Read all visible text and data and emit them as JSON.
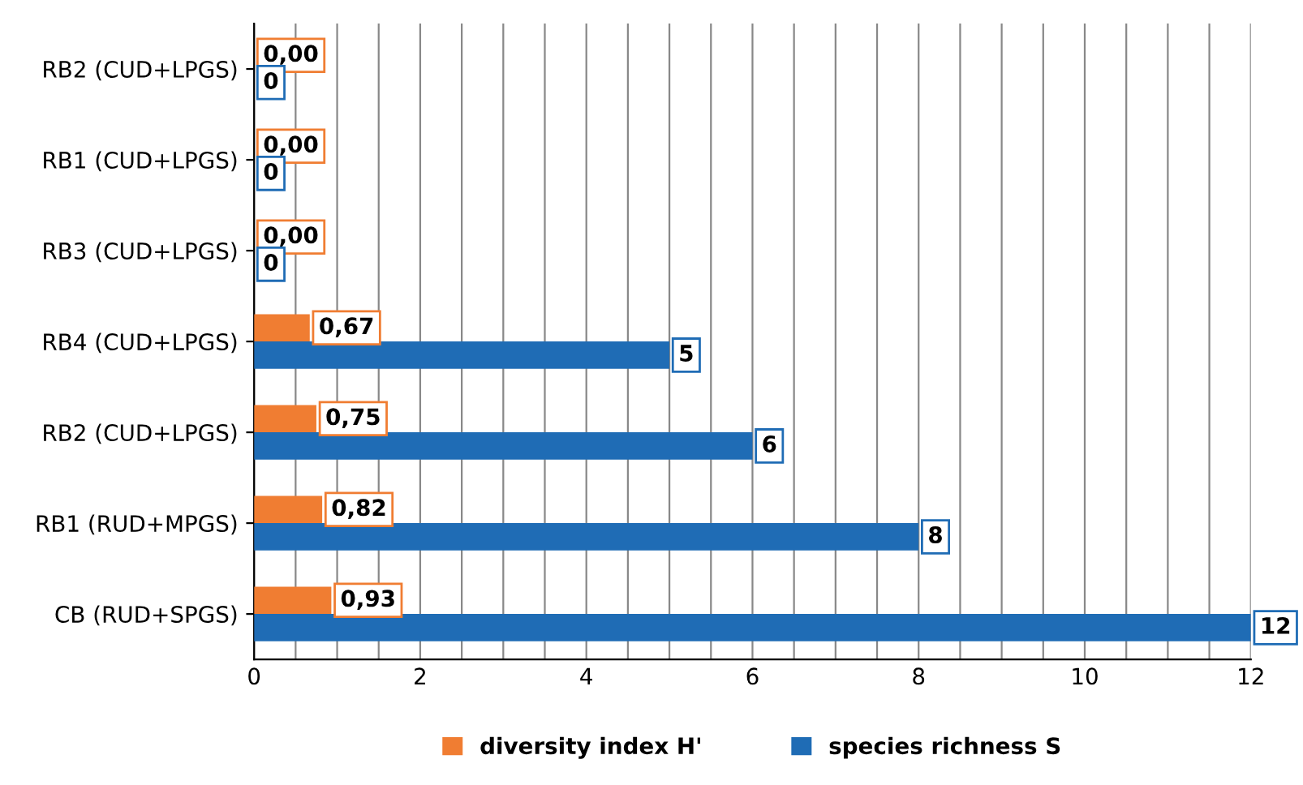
{
  "chart_data": {
    "type": "bar",
    "orientation": "horizontal",
    "categories": [
      "RB2 (CUD+LPGS)",
      "RB1 (CUD+LPGS)",
      "RB3 (CUD+LPGS)",
      "RB4 (CUD+LPGS)",
      "RB2 (CUD+LPGS)",
      "RB1 (RUD+MPGS)",
      "CB (RUD+SPGS)"
    ],
    "series": [
      {
        "name": "diversity index H'",
        "color": "#f07d32",
        "values": [
          0,
          0,
          0,
          0.67,
          0.75,
          0.82,
          0.93
        ],
        "value_labels": [
          "0,00",
          "0,00",
          "0,00",
          "0,67",
          "0,75",
          "0,82",
          "0,93"
        ]
      },
      {
        "name": "species richness S",
        "color": "#1f6cb5",
        "values": [
          0,
          0,
          0,
          5,
          6,
          8,
          12
        ],
        "value_labels": [
          "0",
          "0",
          "0",
          "5",
          "6",
          "8",
          "12"
        ]
      }
    ],
    "xlim": [
      0,
      12
    ],
    "xticks": [
      0,
      {
        "value": 0.5,
        "label": null
      },
      2,
      {
        "value": 2.5,
        "label": null
      },
      4,
      {
        "value": 4.5,
        "label": null
      },
      6,
      {
        "value": 6.5,
        "label": null
      },
      8,
      {
        "value": 8.5,
        "label": null
      },
      10,
      {
        "value": 10.5,
        "label": null
      },
      12,
      {
        "value": 1,
        "label": null
      },
      {
        "value": 1.5,
        "label": null
      },
      {
        "value": 3,
        "label": null
      },
      {
        "value": 3.5,
        "label": null
      },
      {
        "value": 5,
        "label": null
      },
      {
        "value": 5.5,
        "label": null
      },
      {
        "value": 7,
        "label": null
      },
      {
        "value": 7.5,
        "label": null
      },
      {
        "value": 9,
        "label": null
      },
      {
        "value": 9.5,
        "label": null
      },
      {
        "value": 11,
        "label": null
      },
      {
        "value": 11.5,
        "label": null
      }
    ],
    "grid": "x",
    "legend": "bottom"
  }
}
